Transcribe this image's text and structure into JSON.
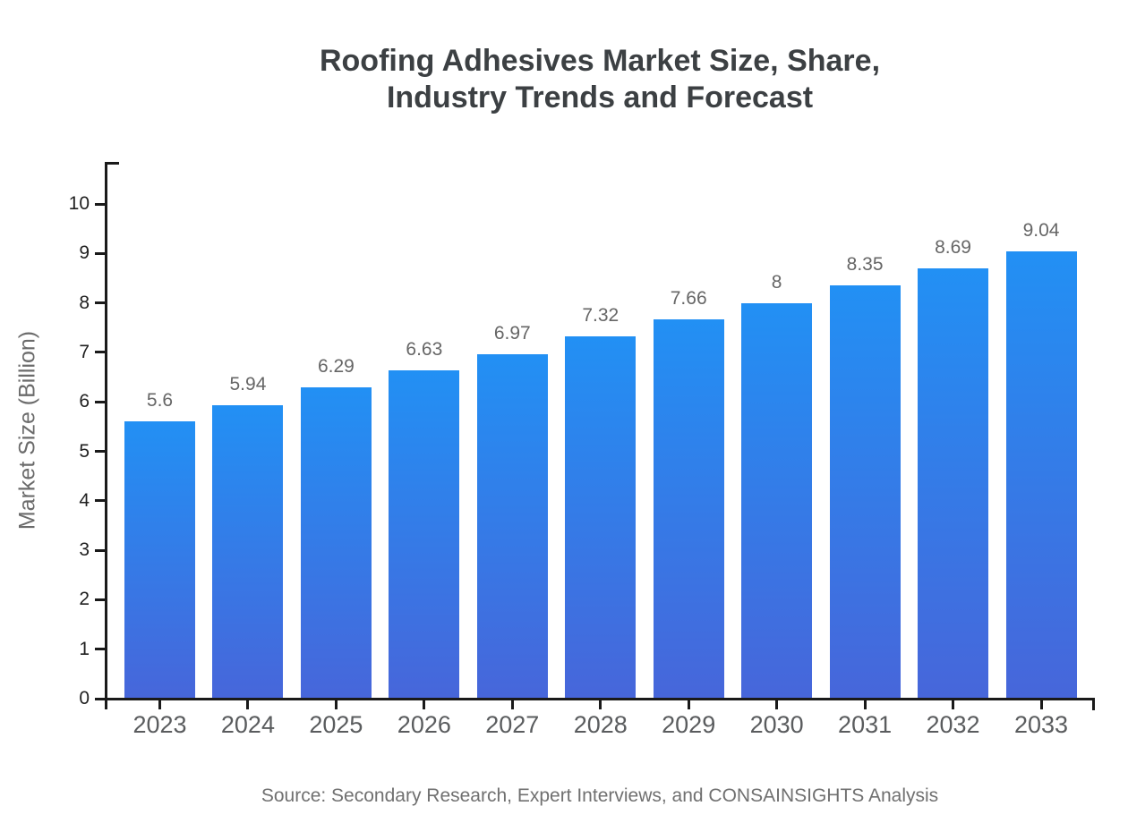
{
  "header": {
    "title_line1": "Roofing Adhesives Market Size, Share,",
    "title_line2": "Industry Trends and Forecast"
  },
  "footer": {
    "source": "Source: Secondary Research, Expert Interviews, and CONSAINSIGHTS Analysis"
  },
  "chart_data": {
    "type": "bar",
    "title": "Roofing Adhesives Market Size, Share, Industry Trends and Forecast",
    "categories": [
      "2023",
      "2024",
      "2025",
      "2026",
      "2027",
      "2028",
      "2029",
      "2030",
      "2031",
      "2032",
      "2033"
    ],
    "values": [
      5.6,
      5.94,
      6.29,
      6.63,
      6.97,
      7.32,
      7.66,
      8,
      8.35,
      8.69,
      9.04
    ],
    "xlabel": "",
    "ylabel": "Market Size (Billion)",
    "ylim": [
      0,
      10
    ],
    "ytick_step": 1,
    "grid": false,
    "legend": false,
    "value_labels": true,
    "colors": {
      "bar_gradient_top": "#2290f4",
      "bar_gradient_bottom": "#4766da",
      "axis": "#1a1a1a",
      "value_label": "#666666",
      "x_tick_label": "#5a5c5e",
      "y_tick_label": "#1f1f1f",
      "axis_title": "#6b6b6b",
      "title": "#3c4043",
      "source": "#707070"
    }
  }
}
